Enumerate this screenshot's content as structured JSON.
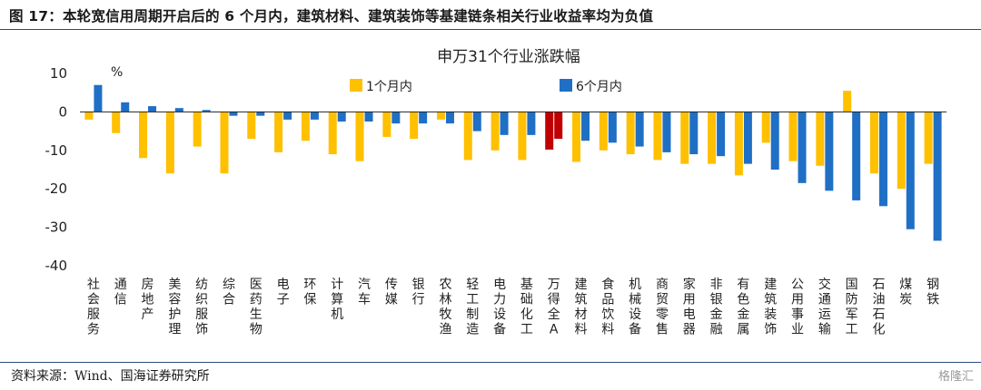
{
  "figure": {
    "title": "图 17：本轮宽信用周期开启后的 6 个月内，建筑材料、建筑装饰等基建链条相关行业收益率均为负值",
    "source": "资料来源：Wind、国海证券研究所",
    "watermark": "格隆汇"
  },
  "colors": {
    "series_1m": "#FFC000",
    "series_6m": "#1F6FC5",
    "highlight_1m": "#C00000",
    "highlight_6m": "#C00000",
    "rule": "#2B4C7E"
  },
  "chart_data": {
    "type": "bar",
    "title": "申万31个行业涨跌幅",
    "unit": "%",
    "ylim": [
      -40,
      10
    ],
    "yticks": [
      -40,
      -30,
      -20,
      -10,
      0,
      10
    ],
    "legend_placement": "top-center",
    "grid": false,
    "highlight_category": "万得全A",
    "categories": [
      "社会服务",
      "通信",
      "房地产",
      "美容护理",
      "纺织服饰",
      "综合",
      "医药生物",
      "电子",
      "环保",
      "计算机",
      "汽车",
      "传媒",
      "银行",
      "农林牧渔",
      "轻工制造",
      "电力设备",
      "基础化工",
      "万得全A",
      "建筑材料",
      "食品饮料",
      "机械设备",
      "商贸零售",
      "家用电器",
      "非银金融",
      "有色金属",
      "建筑装饰",
      "公用事业",
      "交通运输",
      "国防军工",
      "石油石化",
      "煤炭",
      "钢铁"
    ],
    "series": [
      {
        "name": "1个月内",
        "values": [
          -2,
          -5.5,
          -12,
          -16,
          -9,
          -16,
          -7,
          -10.5,
          -7.5,
          -11,
          -12.8,
          -6.5,
          -7,
          -2,
          -12.5,
          -10,
          -12.5,
          -9.8,
          -13,
          -10,
          -11,
          -12.5,
          -13.5,
          -13.5,
          -16.5,
          -8,
          -12.8,
          -14,
          5.5,
          -16,
          -20,
          -13.5
        ]
      },
      {
        "name": "6个月内",
        "values": [
          7,
          2.5,
          1.5,
          1,
          0.5,
          -1,
          -1,
          -2,
          -2,
          -2.5,
          -2.5,
          -3,
          -3,
          -3,
          -5,
          -6,
          -6,
          -7,
          -7.5,
          -8,
          -9,
          -10.5,
          -11,
          -11.5,
          -13.5,
          -15,
          -18.5,
          -20.5,
          -23,
          -24.5,
          -30.5,
          -33.5
        ]
      }
    ]
  }
}
